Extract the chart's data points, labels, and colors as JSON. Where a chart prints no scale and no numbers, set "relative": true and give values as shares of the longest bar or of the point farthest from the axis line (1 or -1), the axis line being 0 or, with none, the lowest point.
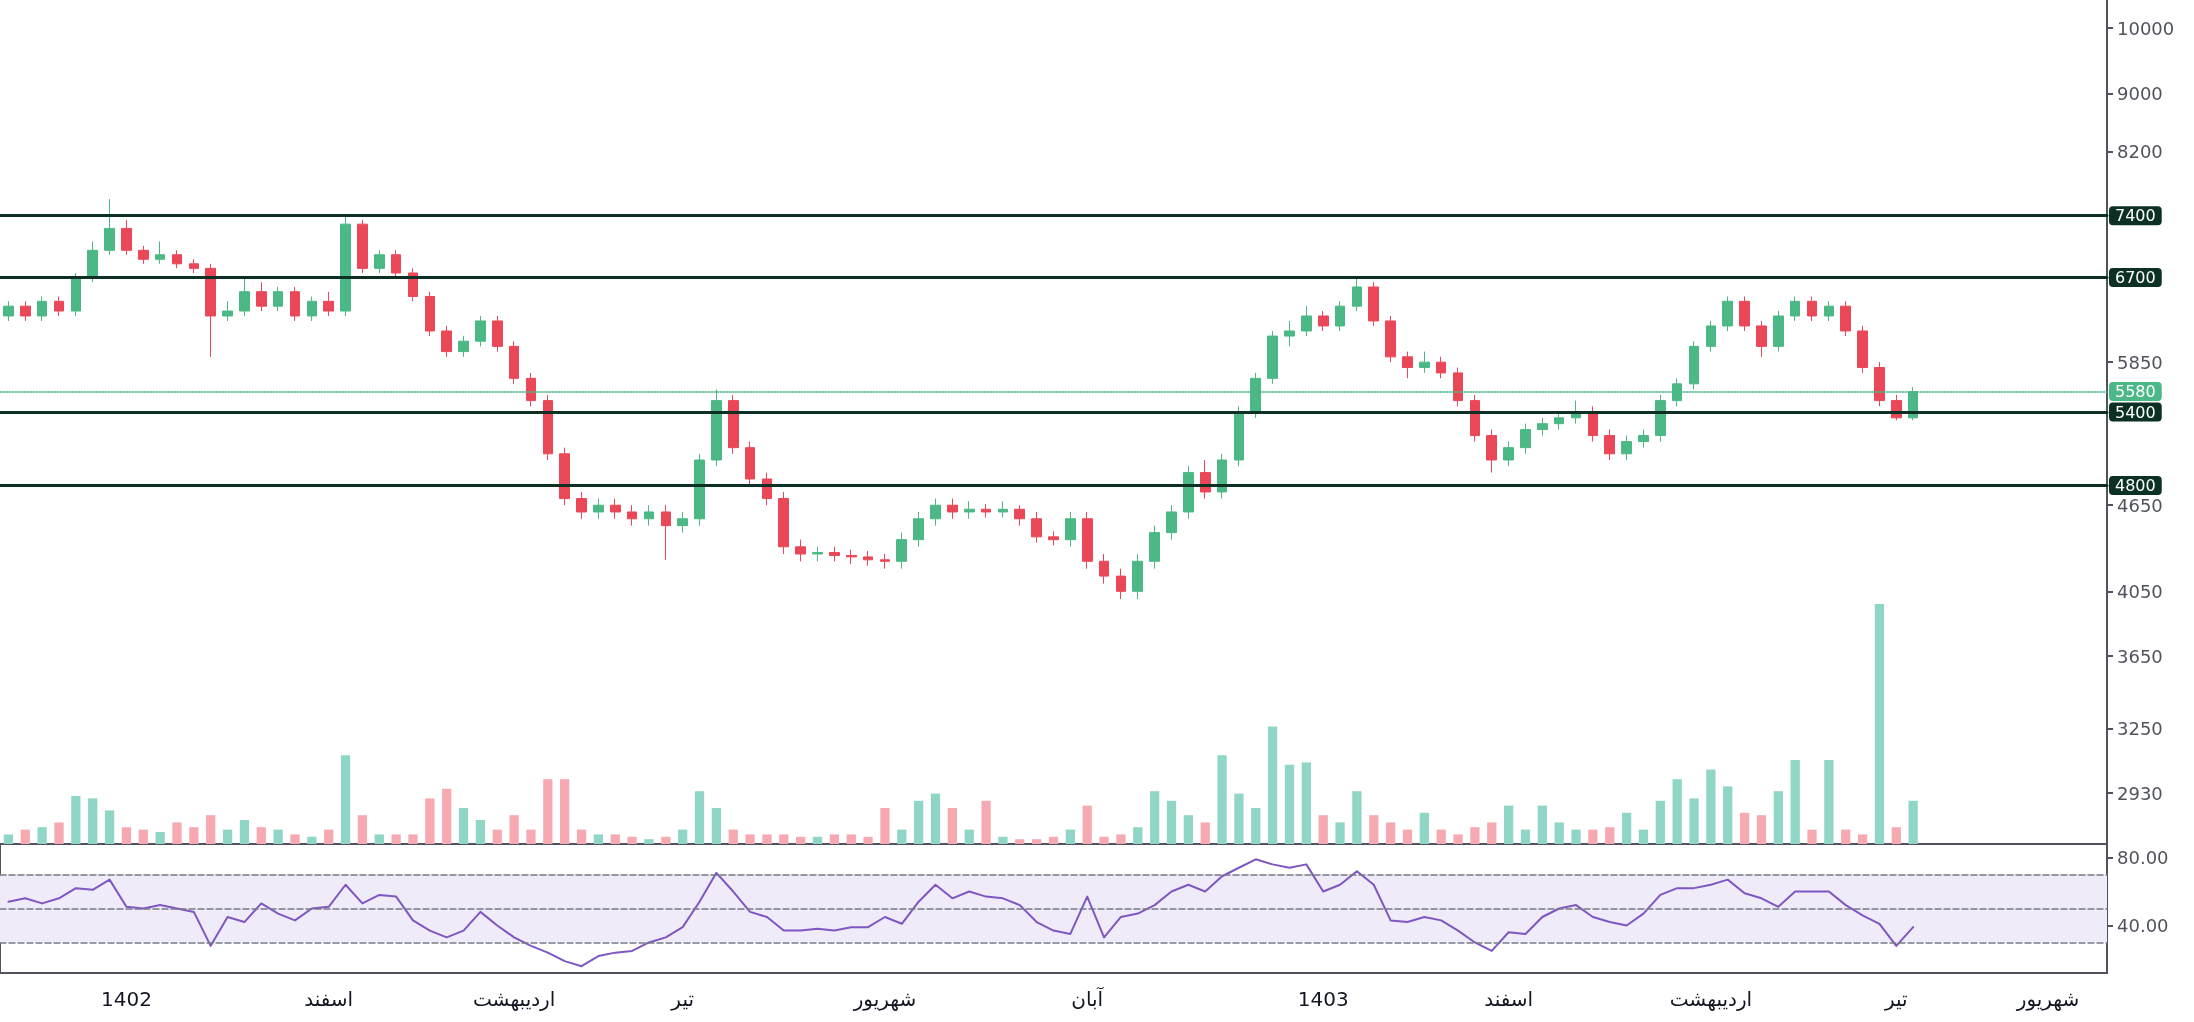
{
  "chart_data": [
    {
      "type": "candlestick",
      "categories": [
        null,
        null,
        null,
        null,
        null,
        null,
        null,
        null,
        null,
        null,
        null,
        null,
        null,
        null,
        null,
        null,
        null,
        null,
        null,
        null,
        null,
        null,
        null,
        null,
        null,
        null,
        null,
        null,
        null,
        null,
        null,
        null,
        null,
        null,
        null,
        null,
        null,
        null,
        null,
        null,
        null,
        null,
        null,
        null,
        null,
        null,
        null,
        null,
        null,
        null,
        null,
        null,
        null,
        null,
        null,
        null,
        null,
        null,
        null,
        null,
        null,
        null,
        null,
        null,
        null,
        null,
        null,
        null,
        null,
        null,
        null,
        null,
        null,
        null,
        null,
        null,
        null,
        null,
        null,
        null,
        null,
        null,
        null,
        null,
        null,
        null,
        null,
        null,
        null,
        null,
        null,
        null,
        null,
        null,
        null,
        null,
        null,
        null,
        null,
        null,
        null,
        null,
        null,
        null,
        null,
        null,
        null,
        null,
        null,
        null,
        null,
        null,
        null,
        null,
        null,
        null,
        null,
        null,
        null,
        null,
        null,
        null,
        null,
        null,
        null
      ],
      "ohlc": [
        [
          6300,
          6450,
          6250,
          6400
        ],
        [
          6400,
          6450,
          6250,
          6300
        ],
        [
          6300,
          6500,
          6250,
          6450
        ],
        [
          6450,
          6500,
          6300,
          6350
        ],
        [
          6350,
          6750,
          6300,
          6700
        ],
        [
          6700,
          7100,
          6650,
          7000
        ],
        [
          7000,
          7600,
          6950,
          7250
        ],
        [
          7250,
          7350,
          6950,
          7000
        ],
        [
          7000,
          7050,
          6850,
          6900
        ],
        [
          6900,
          7100,
          6850,
          6950
        ],
        [
          6950,
          7000,
          6800,
          6850
        ],
        [
          6850,
          6900,
          6750,
          6800
        ],
        [
          6800,
          6850,
          5900,
          6300
        ],
        [
          6300,
          6450,
          6250,
          6350
        ],
        [
          6350,
          6700,
          6300,
          6550
        ],
        [
          6550,
          6650,
          6350,
          6400
        ],
        [
          6400,
          6600,
          6350,
          6550
        ],
        [
          6550,
          6600,
          6250,
          6300
        ],
        [
          6300,
          6500,
          6250,
          6450
        ],
        [
          6450,
          6550,
          6300,
          6350
        ],
        [
          6350,
          7420,
          6300,
          7300
        ],
        [
          7300,
          7350,
          6750,
          6800
        ],
        [
          6800,
          7000,
          6750,
          6950
        ],
        [
          6950,
          7000,
          6700,
          6750
        ],
        [
          6750,
          6800,
          6450,
          6500
        ],
        [
          6500,
          6550,
          6100,
          6150
        ],
        [
          6150,
          6200,
          5900,
          5950
        ],
        [
          5950,
          6100,
          5900,
          6050
        ],
        [
          6050,
          6300,
          6000,
          6250
        ],
        [
          6250,
          6300,
          5950,
          6000
        ],
        [
          6000,
          6050,
          5650,
          5700
        ],
        [
          5700,
          5750,
          5450,
          5500
        ],
        [
          5500,
          5550,
          5000,
          5050
        ],
        [
          5050,
          5100,
          4650,
          4700
        ],
        [
          4700,
          4750,
          4550,
          4600
        ],
        [
          4600,
          4700,
          4550,
          4650
        ],
        [
          4650,
          4700,
          4550,
          4600
        ],
        [
          4600,
          4650,
          4500,
          4550
        ],
        [
          4550,
          4650,
          4500,
          4600
        ],
        [
          4600,
          4650,
          4260,
          4500
        ],
        [
          4500,
          4600,
          4450,
          4550
        ],
        [
          4550,
          5050,
          4500,
          5000
        ],
        [
          5000,
          5600,
          4950,
          5500
        ],
        [
          5500,
          5550,
          5050,
          5100
        ],
        [
          5100,
          5150,
          4800,
          4850
        ],
        [
          4850,
          4900,
          4650,
          4700
        ],
        [
          4700,
          4750,
          4300,
          4350
        ],
        [
          4350,
          4400,
          4250,
          4300
        ],
        [
          4300,
          4350,
          4250,
          4310
        ],
        [
          4310,
          4350,
          4250,
          4290
        ],
        [
          4290,
          4330,
          4230,
          4280
        ],
        [
          4280,
          4320,
          4220,
          4260
        ],
        [
          4260,
          4300,
          4200,
          4250
        ],
        [
          4250,
          4450,
          4200,
          4400
        ],
        [
          4400,
          4600,
          4350,
          4550
        ],
        [
          4550,
          4700,
          4500,
          4650
        ],
        [
          4650,
          4700,
          4550,
          4600
        ],
        [
          4600,
          4680,
          4550,
          4620
        ],
        [
          4620,
          4660,
          4560,
          4600
        ],
        [
          4600,
          4680,
          4560,
          4620
        ],
        [
          4620,
          4650,
          4500,
          4550
        ],
        [
          4550,
          4600,
          4380,
          4420
        ],
        [
          4420,
          4460,
          4360,
          4400
        ],
        [
          4400,
          4600,
          4350,
          4550
        ],
        [
          4550,
          4600,
          4200,
          4250
        ],
        [
          4250,
          4300,
          4100,
          4150
        ],
        [
          4150,
          4200,
          4000,
          4050
        ],
        [
          4050,
          4300,
          4000,
          4250
        ],
        [
          4250,
          4500,
          4200,
          4450
        ],
        [
          4450,
          4650,
          4400,
          4600
        ],
        [
          4600,
          4950,
          4550,
          4900
        ],
        [
          4900,
          5000,
          4700,
          4750
        ],
        [
          4750,
          5050,
          4700,
          5000
        ],
        [
          5000,
          5450,
          4950,
          5400
        ],
        [
          5400,
          5750,
          5350,
          5700
        ],
        [
          5700,
          6150,
          5650,
          6100
        ],
        [
          6100,
          6250,
          6000,
          6150
        ],
        [
          6150,
          6400,
          6100,
          6300
        ],
        [
          6300,
          6350,
          6150,
          6200
        ],
        [
          6200,
          6450,
          6150,
          6400
        ],
        [
          6400,
          6700,
          6350,
          6600
        ],
        [
          6600,
          6650,
          6200,
          6250
        ],
        [
          6250,
          6300,
          5850,
          5900
        ],
        [
          5900,
          5950,
          5700,
          5800
        ],
        [
          5800,
          5950,
          5750,
          5850
        ],
        [
          5850,
          5900,
          5700,
          5750
        ],
        [
          5750,
          5800,
          5450,
          5500
        ],
        [
          5500,
          5550,
          5150,
          5200
        ],
        [
          5200,
          5250,
          4900,
          5000
        ],
        [
          5000,
          5150,
          4950,
          5100
        ],
        [
          5100,
          5300,
          5050,
          5250
        ],
        [
          5250,
          5350,
          5200,
          5300
        ],
        [
          5300,
          5400,
          5250,
          5350
        ],
        [
          5350,
          5500,
          5300,
          5400
        ],
        [
          5400,
          5450,
          5150,
          5200
        ],
        [
          5200,
          5250,
          5000,
          5050
        ],
        [
          5050,
          5200,
          5000,
          5150
        ],
        [
          5150,
          5250,
          5100,
          5200
        ],
        [
          5200,
          5550,
          5150,
          5500
        ],
        [
          5500,
          5700,
          5450,
          5650
        ],
        [
          5650,
          6050,
          5600,
          6000
        ],
        [
          6000,
          6250,
          5950,
          6200
        ],
        [
          6200,
          6500,
          6150,
          6450
        ],
        [
          6450,
          6500,
          6150,
          6200
        ],
        [
          6200,
          6250,
          5900,
          6000
        ],
        [
          6000,
          6350,
          5950,
          6300
        ],
        [
          6300,
          6500,
          6250,
          6450
        ],
        [
          6450,
          6500,
          6250,
          6300
        ],
        [
          6300,
          6450,
          6250,
          6400
        ],
        [
          6400,
          6450,
          6100,
          6150
        ],
        [
          6150,
          6200,
          5750,
          5800
        ],
        [
          5800,
          5850,
          5450,
          5500
        ],
        [
          5500,
          5550,
          5330,
          5350
        ],
        [
          5350,
          5620,
          5330,
          5580
        ],
        null,
        null,
        null,
        null,
        null,
        null,
        null,
        null,
        null,
        null,
        null
      ],
      "colors": [
        "#4cb885",
        "#ea4858",
        "#4cb885",
        "#ea4858",
        "#4cb885",
        "#4cb885",
        "#4cb885",
        "#ea4858",
        "#ea4858",
        "#4cb885",
        "#ea4858",
        "#ea4858",
        "#ea4858",
        "#4cb885",
        "#4cb885",
        "#ea4858",
        "#4cb885",
        "#ea4858",
        "#4cb885",
        "#ea4858",
        "#4cb885",
        "#ea4858",
        "#4cb885",
        "#ea4858",
        "#ea4858",
        "#ea4858",
        "#ea4858",
        "#4cb885",
        "#4cb885",
        "#ea4858",
        "#ea4858",
        "#ea4858",
        "#ea4858",
        "#ea4858",
        "#ea4858",
        "#4cb885",
        "#ea4858",
        "#ea4858",
        "#4cb885",
        "#ea4858",
        "#4cb885",
        "#4cb885",
        "#4cb885",
        "#ea4858",
        "#ea4858",
        "#ea4858",
        "#ea4858",
        "#ea4858",
        "#4cb885",
        "#ea4858",
        "#ea4858",
        "#ea4858",
        "#ea4858",
        "#4cb885",
        "#4cb885",
        "#4cb885",
        "#ea4858",
        "#4cb885",
        "#ea4858",
        "#4cb885",
        "#ea4858",
        "#ea4858",
        "#ea4858",
        "#4cb885",
        "#ea4858",
        "#ea4858",
        "#ea4858",
        "#4cb885",
        "#4cb885",
        "#4cb885",
        "#4cb885",
        "#ea4858",
        "#4cb885",
        "#4cb885",
        "#4cb885",
        "#4cb885",
        "#4cb885",
        "#4cb885",
        "#ea4858",
        "#4cb885",
        "#4cb885",
        "#ea4858",
        "#ea4858",
        "#ea4858",
        "#4cb885",
        "#ea4858",
        "#ea4858",
        "#ea4858",
        "#ea4858",
        "#4cb885",
        "#4cb885",
        "#4cb885",
        "#4cb885",
        "#4cb885",
        "#ea4858",
        "#ea4858",
        "#4cb885",
        "#4cb885",
        "#4cb885",
        "#4cb885",
        "#4cb885",
        "#4cb885",
        "#4cb885",
        "#ea4858",
        "#ea4858",
        "#4cb885",
        "#4cb885",
        "#ea4858",
        "#4cb885",
        "#ea4858",
        "#ea4858",
        "#ea4858",
        "#ea4858",
        "#4cb885",
        null,
        null,
        null,
        null,
        null,
        null,
        null,
        null,
        null,
        null,
        null
      ],
      "log": "y",
      "ylim": [
        2700,
        10460
      ],
      "yticks": [
        2930,
        3250,
        3650,
        4050,
        4650,
        5850,
        8200,
        9000,
        10000
      ],
      "ref_lines": [
        {
          "axis": "y",
          "value": 7400,
          "label": "7400",
          "color": "#0c3023",
          "line_style": "solid"
        },
        {
          "axis": "y",
          "value": 6700,
          "label": "6700",
          "color": "#0c3023",
          "line_style": "solid"
        },
        {
          "axis": "y",
          "value": 5400,
          "label": "5400",
          "color": "#0c3023",
          "line_style": "solid"
        },
        {
          "axis": "y",
          "value": 4800,
          "label": "4800",
          "color": "#0c3023",
          "line_style": "solid"
        },
        {
          "axis": "y",
          "value": 5580,
          "label": "5580",
          "color": "#4cb885",
          "line_style": "dotted"
        }
      ],
      "tick_labels": "y"
    },
    {
      "type": "bar",
      "relative": true,
      "tick_labels": false,
      "categories": [
        null,
        null,
        null,
        null,
        null,
        null,
        null,
        null,
        null,
        null,
        null,
        null,
        null,
        null,
        null,
        null,
        null,
        null,
        null,
        null,
        null,
        null,
        null,
        null,
        null,
        null,
        null,
        null,
        null,
        null,
        null,
        null,
        null,
        null,
        null,
        null,
        null,
        null,
        null,
        null,
        null,
        null,
        null,
        null,
        null,
        null,
        null,
        null,
        null,
        null,
        null,
        null,
        null,
        null,
        null,
        null,
        null,
        null,
        null,
        null,
        null,
        null,
        null,
        null,
        null,
        null,
        null,
        null,
        null,
        null,
        null,
        null,
        null,
        null,
        null,
        null,
        null,
        null,
        null,
        null,
        null,
        null,
        null,
        null,
        null,
        null,
        null,
        null,
        null,
        null,
        null,
        null,
        null,
        null,
        null,
        null,
        null,
        null,
        null,
        null,
        null,
        null,
        null,
        null,
        null,
        null,
        null,
        null,
        null,
        null,
        null,
        null,
        null,
        null,
        null,
        null,
        null,
        null,
        null,
        null,
        null,
        null,
        null,
        null,
        null
      ],
      "values": [
        0.04,
        0.06,
        0.07,
        0.09,
        0.2,
        0.19,
        0.14,
        0.07,
        0.06,
        0.05,
        0.09,
        0.07,
        0.12,
        0.06,
        0.1,
        0.07,
        0.06,
        0.04,
        0.03,
        0.06,
        0.37,
        0.12,
        0.04,
        0.04,
        0.04,
        0.19,
        0.23,
        0.15,
        0.1,
        0.06,
        0.12,
        0.06,
        0.27,
        0.27,
        0.06,
        0.04,
        0.04,
        0.03,
        0.02,
        0.03,
        0.06,
        0.22,
        0.15,
        0.06,
        0.04,
        0.04,
        0.04,
        0.03,
        0.03,
        0.04,
        0.04,
        0.03,
        0.15,
        0.06,
        0.18,
        0.21,
        0.15,
        0.06,
        0.18,
        0.03,
        0.02,
        0.02,
        0.03,
        0.06,
        0.16,
        0.03,
        0.04,
        0.07,
        0.22,
        0.18,
        0.12,
        0.09,
        0.37,
        0.21,
        0.15,
        0.49,
        0.33,
        0.34,
        0.12,
        0.09,
        0.22,
        0.12,
        0.09,
        0.06,
        0.13,
        0.06,
        0.04,
        0.07,
        0.09,
        0.16,
        0.06,
        0.16,
        0.09,
        0.06,
        0.06,
        0.07,
        0.13,
        0.06,
        0.18,
        0.27,
        0.19,
        0.31,
        0.24,
        0.13,
        0.12,
        0.22,
        0.35,
        0.06,
        0.35,
        0.06,
        0.04,
        1,
        0.07,
        0.18,
        null,
        null,
        null,
        null,
        null,
        null,
        null,
        null,
        null,
        null,
        null
      ],
      "colors": [
        "#8fd6c6",
        "#f7a9b1",
        "#8fd6c6",
        "#f7a9b1",
        "#8fd6c6",
        "#8fd6c6",
        "#8fd6c6",
        "#f7a9b1",
        "#f7a9b1",
        "#8fd6c6",
        "#f7a9b1",
        "#f7a9b1",
        "#f7a9b1",
        "#8fd6c6",
        "#8fd6c6",
        "#f7a9b1",
        "#8fd6c6",
        "#f7a9b1",
        "#8fd6c6",
        "#f7a9b1",
        "#8fd6c6",
        "#f7a9b1",
        "#8fd6c6",
        "#f7a9b1",
        "#f7a9b1",
        "#f7a9b1",
        "#f7a9b1",
        "#8fd6c6",
        "#8fd6c6",
        "#f7a9b1",
        "#f7a9b1",
        "#f7a9b1",
        "#f7a9b1",
        "#f7a9b1",
        "#f7a9b1",
        "#8fd6c6",
        "#f7a9b1",
        "#f7a9b1",
        "#8fd6c6",
        "#f7a9b1",
        "#8fd6c6",
        "#8fd6c6",
        "#8fd6c6",
        "#f7a9b1",
        "#f7a9b1",
        "#f7a9b1",
        "#f7a9b1",
        "#f7a9b1",
        "#8fd6c6",
        "#f7a9b1",
        "#f7a9b1",
        "#f7a9b1",
        "#f7a9b1",
        "#8fd6c6",
        "#8fd6c6",
        "#8fd6c6",
        "#f7a9b1",
        "#8fd6c6",
        "#f7a9b1",
        "#8fd6c6",
        "#f7a9b1",
        "#f7a9b1",
        "#f7a9b1",
        "#8fd6c6",
        "#f7a9b1",
        "#f7a9b1",
        "#f7a9b1",
        "#8fd6c6",
        "#8fd6c6",
        "#8fd6c6",
        "#8fd6c6",
        "#f7a9b1",
        "#8fd6c6",
        "#8fd6c6",
        "#8fd6c6",
        "#8fd6c6",
        "#8fd6c6",
        "#8fd6c6",
        "#f7a9b1",
        "#8fd6c6",
        "#8fd6c6",
        "#f7a9b1",
        "#f7a9b1",
        "#f7a9b1",
        "#8fd6c6",
        "#f7a9b1",
        "#f7a9b1",
        "#f7a9b1",
        "#f7a9b1",
        "#8fd6c6",
        "#8fd6c6",
        "#8fd6c6",
        "#8fd6c6",
        "#8fd6c6",
        "#f7a9b1",
        "#f7a9b1",
        "#8fd6c6",
        "#8fd6c6",
        "#8fd6c6",
        "#8fd6c6",
        "#8fd6c6",
        "#8fd6c6",
        "#8fd6c6",
        "#f7a9b1",
        "#f7a9b1",
        "#8fd6c6",
        "#8fd6c6",
        "#f7a9b1",
        "#8fd6c6",
        "#f7a9b1",
        "#f7a9b1",
        "#8fd6c6",
        "#f7a9b1",
        "#8fd6c6",
        null,
        null,
        null,
        null,
        null,
        null,
        null,
        null,
        null,
        null,
        null
      ]
    },
    {
      "type": "line",
      "categories": [
        null,
        null,
        null,
        null,
        null,
        null,
        null,
        "1402",
        null,
        null,
        null,
        null,
        null,
        null,
        null,
        null,
        null,
        null,
        null,
        "اسفند",
        null,
        null,
        null,
        null,
        null,
        null,
        null,
        null,
        null,
        null,
        "اردیبهشت",
        null,
        null,
        null,
        null,
        null,
        null,
        null,
        null,
        null,
        "تیر",
        null,
        null,
        null,
        null,
        null,
        null,
        null,
        null,
        null,
        null,
        null,
        "شهریور",
        null,
        null,
        null,
        null,
        null,
        null,
        null,
        null,
        null,
        null,
        null,
        "آبان",
        null,
        null,
        null,
        null,
        null,
        null,
        null,
        null,
        null,
        null,
        null,
        null,
        null,
        "1403",
        null,
        null,
        null,
        null,
        null,
        null,
        null,
        null,
        null,
        null,
        "اسفند",
        null,
        null,
        null,
        null,
        null,
        null,
        null,
        null,
        null,
        null,
        null,
        "اردیبهشت",
        null,
        null,
        null,
        null,
        null,
        null,
        null,
        null,
        null,
        null,
        "تیر",
        null,
        null,
        null,
        null,
        null,
        null,
        null,
        null,
        "شهریور",
        null,
        null,
        null
      ],
      "series": [
        {
          "color": "#7e57c2",
          "values": [
            54,
            56,
            53,
            56,
            62,
            61,
            67,
            51,
            50,
            52,
            50,
            48,
            28,
            45,
            42,
            53,
            47,
            43,
            50,
            51,
            64,
            53,
            58,
            57,
            43,
            37,
            33,
            37,
            48,
            40,
            33,
            28,
            24,
            19,
            16,
            22,
            24,
            25,
            30,
            33,
            39,
            54,
            71,
            60,
            48,
            45,
            37,
            37,
            38,
            37,
            39,
            39,
            45,
            41,
            54,
            64,
            56,
            60,
            57,
            56,
            52,
            42,
            37,
            35,
            57,
            33,
            45,
            47,
            52,
            60,
            64,
            60,
            69,
            74,
            79,
            76,
            74,
            76,
            60,
            64,
            72,
            64,
            43,
            42,
            45,
            43,
            37,
            30,
            25,
            36,
            35,
            45,
            50,
            52,
            45,
            42,
            40,
            47,
            58,
            62,
            62,
            64,
            67,
            59,
            56,
            51,
            60,
            60,
            60,
            52,
            46,
            41,
            28,
            39,
            null,
            null,
            null,
            null,
            null,
            null,
            null,
            null,
            null,
            null,
            null
          ]
        }
      ],
      "marker": "none",
      "line_style": "solid",
      "ylim": [
        12,
        88
      ],
      "yticks": [
        {
          "value": 80,
          "label": "80.00"
        },
        {
          "value": 40,
          "label": "40.00"
        }
      ],
      "ref_lines": [
        {
          "axis": "y",
          "value": 70,
          "label": null,
          "color": "#787b86",
          "line_style": "dashed"
        },
        {
          "axis": "y",
          "value": 50,
          "label": null,
          "color": "#787b86",
          "line_style": "dashed"
        },
        {
          "axis": "y",
          "value": 30,
          "label": null,
          "color": "#787b86",
          "line_style": "dashed"
        }
      ],
      "bands": [
        {
          "axis": "y",
          "from": 30,
          "to": 70,
          "label": null,
          "color": "#efebf8"
        }
      ]
    }
  ]
}
